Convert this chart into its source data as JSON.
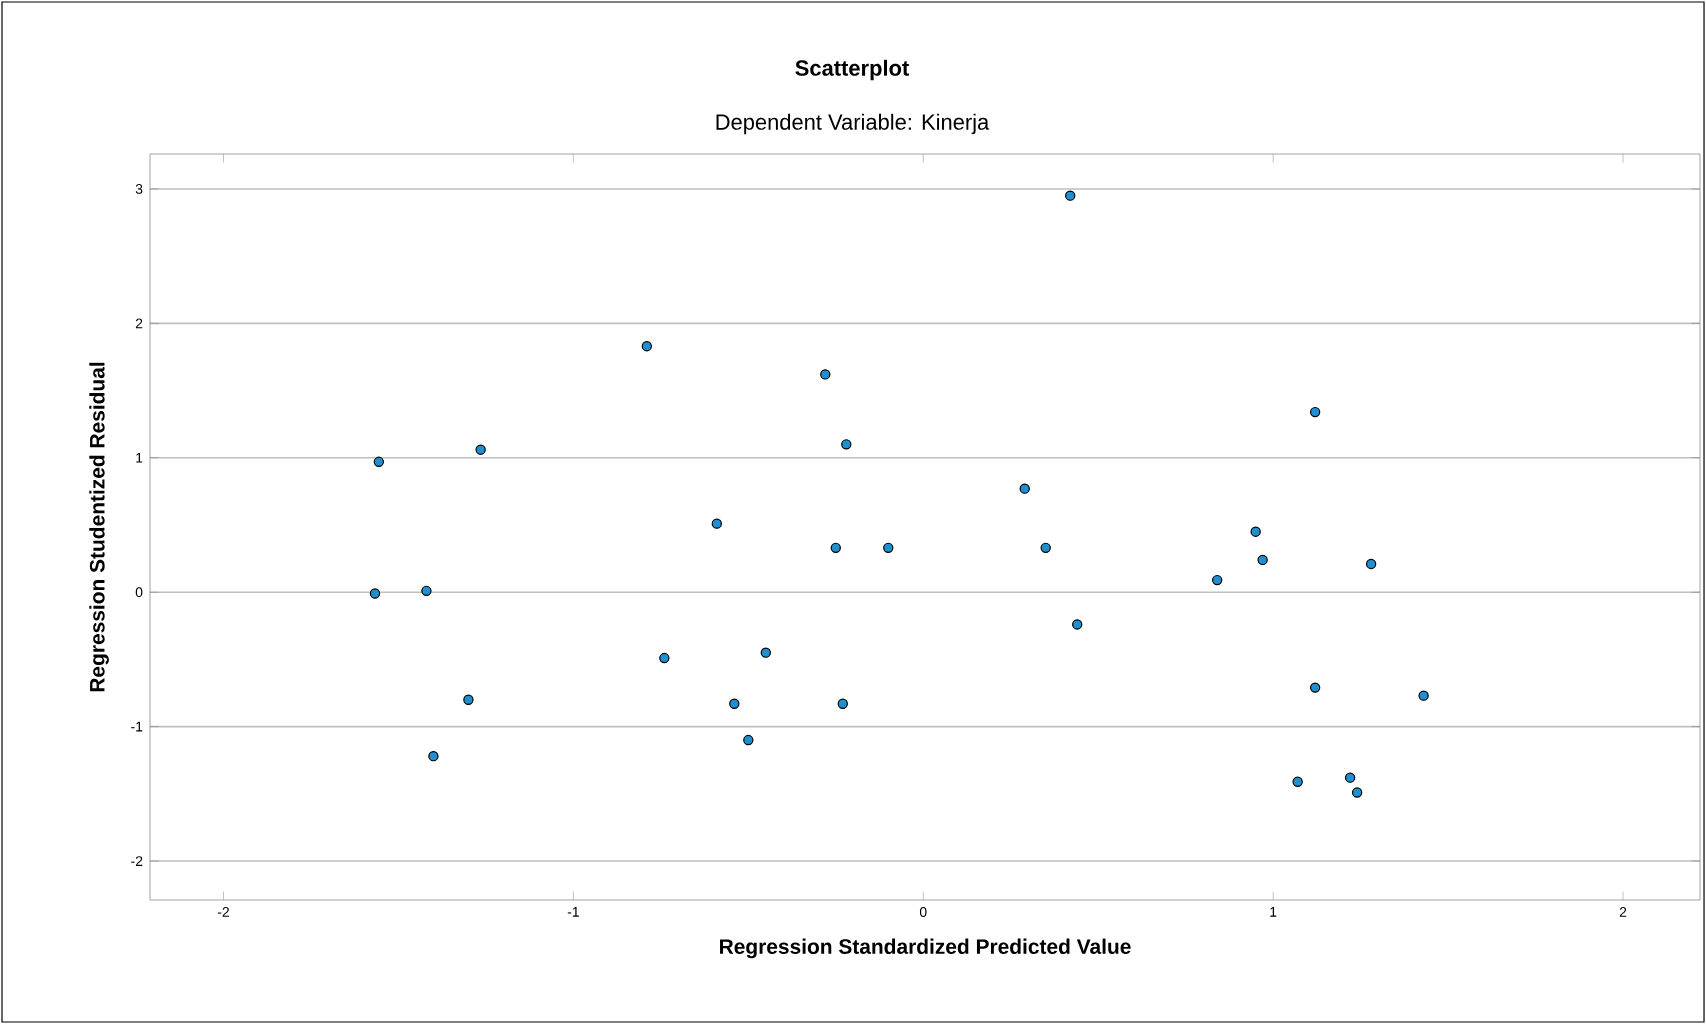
{
  "chart_data": {
    "type": "scatter",
    "title": "Scatterplot",
    "subtitle": "Dependent Variable: Kinerja",
    "xlabel": "Regression Standardized Predicted Value",
    "ylabel": "Regression Studentized Residual",
    "xlim": [
      -2.21,
      2.22
    ],
    "ylim": [
      -2.29,
      3.26
    ],
    "xticks": [
      -2,
      -1,
      0,
      1,
      2
    ],
    "yticks": [
      -2,
      -1,
      0,
      1,
      2,
      3
    ],
    "grid": "y",
    "marker": "circle",
    "series": [
      {
        "color": "#1f8fd0",
        "x": [
          -1.556,
          -1.567,
          -1.42,
          -1.265,
          -1.3,
          -1.4,
          -0.79,
          -0.59,
          -0.74,
          -0.54,
          -0.5,
          -0.45,
          -0.28,
          -0.22,
          -0.25,
          -0.1,
          -0.23,
          0.42,
          0.29,
          0.35,
          0.44,
          0.84,
          0.95,
          0.97,
          1.12,
          1.28,
          1.12,
          1.07,
          1.22,
          1.24,
          1.43
        ],
        "values": [
          0.97,
          -0.01,
          0.01,
          1.06,
          -0.8,
          -1.22,
          1.83,
          0.51,
          -0.49,
          -0.83,
          -1.1,
          -0.45,
          1.62,
          1.1,
          0.33,
          0.33,
          -0.83,
          2.95,
          0.77,
          0.33,
          -0.24,
          0.09,
          0.45,
          0.24,
          1.34,
          0.21,
          -0.71,
          -1.41,
          -1.38,
          -1.49,
          -0.77
        ]
      }
    ]
  }
}
